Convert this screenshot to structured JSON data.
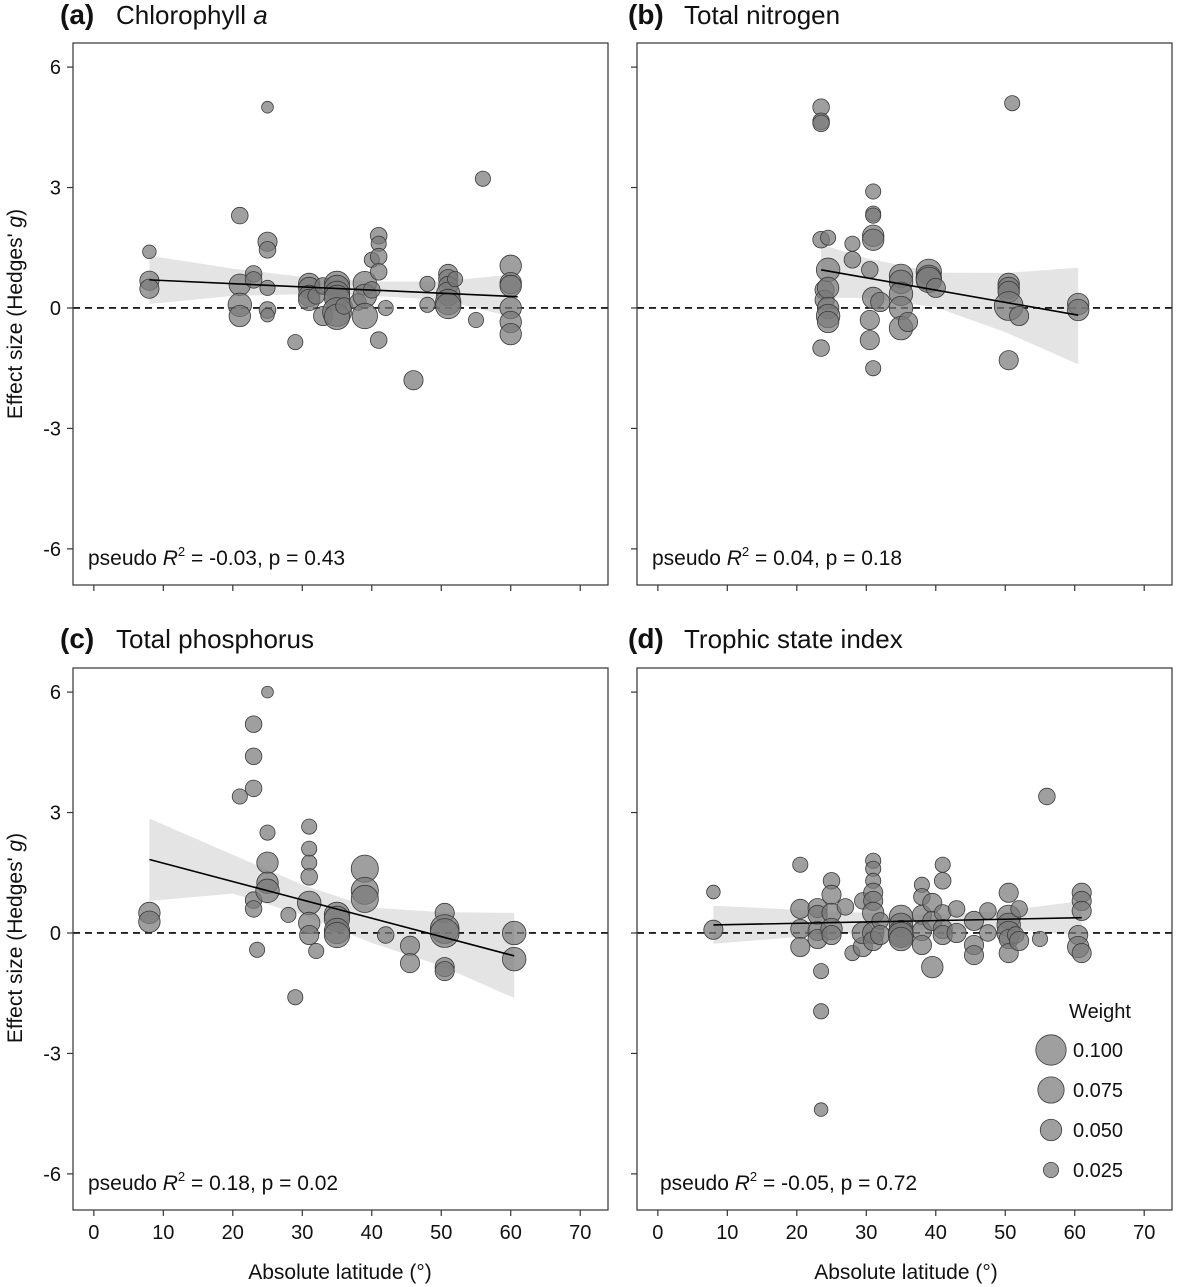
{
  "figure": {
    "y_axis_label": {
      "pre": "Effect size (Hedges' ",
      "italic": "g",
      "post": ")"
    },
    "x_axis_label": "Absolute latitude (°)",
    "x_ticks": [
      0,
      10,
      20,
      30,
      40,
      50,
      60,
      70
    ],
    "y_ticks": [
      6,
      3,
      0,
      -3,
      -6
    ],
    "y_tick_labels": [
      "6",
      "3",
      "0",
      "-3",
      "-6"
    ],
    "legend": {
      "title": "Weight",
      "entries": [
        {
          "label": "0.100",
          "weight": 0.1
        },
        {
          "label": "0.075",
          "weight": 0.075
        },
        {
          "label": "0.050",
          "weight": 0.05
        },
        {
          "label": "0.025",
          "weight": 0.025
        }
      ]
    },
    "colors": {
      "points": "#7a7a7a",
      "point_stroke": "#3a3a3a",
      "ribbon": "#e4e4e4",
      "line": "#000000"
    }
  },
  "chart_data": [
    {
      "type": "scatter",
      "panel_letter": "(a)",
      "title": {
        "text": "Chlorophyll ",
        "italic": "a"
      },
      "xlim": [
        -3,
        74
      ],
      "ylim": [
        -6.9,
        6.6
      ],
      "stat": {
        "pre": "pseudo ",
        "r": "R",
        "sup": "2",
        "post": " = -0.03, p = 0.43"
      },
      "fit": {
        "x": [
          8,
          61
        ],
        "y": [
          0.7,
          0.28
        ]
      },
      "ribbon": {
        "x": [
          8,
          20,
          30,
          40,
          50,
          61
        ],
        "upper": [
          1.3,
          0.98,
          0.78,
          0.66,
          0.66,
          0.85
        ],
        "lower": [
          0.1,
          0.3,
          0.34,
          0.3,
          0.2,
          -0.25
        ]
      },
      "points": [
        [
          8,
          1.4,
          0.02
        ],
        [
          8,
          0.68,
          0.04
        ],
        [
          8,
          0.48,
          0.04
        ],
        [
          21,
          2.3,
          0.03
        ],
        [
          21,
          0.58,
          0.05
        ],
        [
          21,
          0.08,
          0.06
        ],
        [
          21,
          -0.2,
          0.05
        ],
        [
          23,
          0.85,
          0.03
        ],
        [
          23,
          0.7,
          0.03
        ],
        [
          25,
          5.0,
          0.015
        ],
        [
          25,
          1.65,
          0.04
        ],
        [
          25,
          1.45,
          0.03
        ],
        [
          25,
          0.5,
          0.025
        ],
        [
          25,
          -0.05,
          0.03
        ],
        [
          25,
          -0.18,
          0.02
        ],
        [
          29,
          -0.85,
          0.025
        ],
        [
          31,
          0.6,
          0.05
        ],
        [
          31,
          0.5,
          0.05
        ],
        [
          31,
          0.3,
          0.05
        ],
        [
          31,
          0.2,
          0.05
        ],
        [
          32,
          0.3,
          0.03
        ],
        [
          33,
          0.55,
          0.03
        ],
        [
          33,
          -0.2,
          0.04
        ],
        [
          35,
          0.6,
          0.07
        ],
        [
          35,
          0.5,
          0.07
        ],
        [
          35,
          0.35,
          0.07
        ],
        [
          35,
          0.25,
          0.07
        ],
        [
          35,
          -0.1,
          0.09
        ],
        [
          35,
          -0.22,
          0.07
        ],
        [
          36,
          0.05,
          0.03
        ],
        [
          38,
          0.15,
          0.03
        ],
        [
          39,
          0.62,
          0.06
        ],
        [
          39,
          0.3,
          0.06
        ],
        [
          39,
          -0.2,
          0.07
        ],
        [
          40,
          1.2,
          0.025
        ],
        [
          40,
          0.45,
          0.03
        ],
        [
          41,
          1.8,
          0.03
        ],
        [
          41,
          1.6,
          0.025
        ],
        [
          41,
          1.28,
          0.03
        ],
        [
          41,
          0.9,
          0.03
        ],
        [
          41,
          -0.8,
          0.03
        ],
        [
          42,
          0.0,
          0.025
        ],
        [
          46,
          -1.8,
          0.04
        ],
        [
          48,
          0.6,
          0.025
        ],
        [
          48,
          0.08,
          0.025
        ],
        [
          51,
          0.85,
          0.04
        ],
        [
          51,
          0.72,
          0.04
        ],
        [
          51,
          0.55,
          0.04
        ],
        [
          51,
          0.35,
          0.06
        ],
        [
          51,
          0.15,
          0.07
        ],
        [
          51,
          0.05,
          0.07
        ],
        [
          52,
          0.72,
          0.025
        ],
        [
          55,
          -0.3,
          0.025
        ],
        [
          56,
          3.22,
          0.025
        ],
        [
          60,
          1.05,
          0.05
        ],
        [
          60,
          0.62,
          0.05
        ],
        [
          60,
          0.55,
          0.05
        ],
        [
          60,
          0.0,
          0.05
        ],
        [
          60,
          -0.35,
          0.05
        ],
        [
          60,
          -0.65,
          0.05
        ]
      ]
    },
    {
      "type": "scatter",
      "panel_letter": "(b)",
      "title": {
        "text": "Total nitrogen",
        "italic": ""
      },
      "xlim": [
        -3,
        74
      ],
      "ylim": [
        -6.9,
        6.6
      ],
      "stat": {
        "pre": "pseudo ",
        "r": "R",
        "sup": "2",
        "post": " = 0.04, p = 0.18"
      },
      "fit": {
        "x": [
          23.5,
          60.5
        ],
        "y": [
          0.95,
          -0.18
        ]
      },
      "ribbon": {
        "x": [
          23.5,
          30,
          40,
          50,
          60.5
        ],
        "upper": [
          1.58,
          1.24,
          0.88,
          0.87,
          1.0
        ],
        "lower": [
          0.25,
          0.25,
          0.02,
          -0.6,
          -1.4
        ]
      },
      "points": [
        [
          23.5,
          5.0,
          0.03
        ],
        [
          23.5,
          4.65,
          0.03
        ],
        [
          23.5,
          4.6,
          0.03
        ],
        [
          23.5,
          1.7,
          0.03
        ],
        [
          23.5,
          -1.0,
          0.03
        ],
        [
          24,
          0.45,
          0.04
        ],
        [
          24,
          0.2,
          0.04
        ],
        [
          24.5,
          1.75,
          0.025
        ],
        [
          24.5,
          0.95,
          0.06
        ],
        [
          24.5,
          0.5,
          0.05
        ],
        [
          24.5,
          0.0,
          0.05
        ],
        [
          24.5,
          -0.2,
          0.06
        ],
        [
          24.5,
          -0.35,
          0.05
        ],
        [
          28,
          1.6,
          0.025
        ],
        [
          28,
          1.2,
          0.03
        ],
        [
          30.5,
          0.95,
          0.03
        ],
        [
          30.5,
          -0.3,
          0.04
        ],
        [
          30.5,
          -0.8,
          0.04
        ],
        [
          31,
          2.9,
          0.025
        ],
        [
          31,
          2.35,
          0.025
        ],
        [
          31,
          2.3,
          0.025
        ],
        [
          31,
          1.8,
          0.05
        ],
        [
          31,
          1.7,
          0.05
        ],
        [
          31,
          0.25,
          0.05
        ],
        [
          31,
          -1.5,
          0.025
        ],
        [
          32,
          0.15,
          0.04
        ],
        [
          35,
          0.8,
          0.06
        ],
        [
          35,
          0.65,
          0.06
        ],
        [
          35,
          0.35,
          0.06
        ],
        [
          35,
          0.0,
          0.06
        ],
        [
          35,
          -0.5,
          0.06
        ],
        [
          36,
          -0.35,
          0.04
        ],
        [
          39,
          0.9,
          0.07
        ],
        [
          39,
          0.75,
          0.07
        ],
        [
          39,
          0.7,
          0.07
        ],
        [
          40,
          0.5,
          0.04
        ],
        [
          50.5,
          0.6,
          0.05
        ],
        [
          50.5,
          0.5,
          0.05
        ],
        [
          50.5,
          0.4,
          0.05
        ],
        [
          50.5,
          0.05,
          0.09
        ],
        [
          50.5,
          -1.3,
          0.04
        ],
        [
          51,
          5.1,
          0.025
        ],
        [
          52,
          -0.2,
          0.04
        ],
        [
          60.5,
          0.1,
          0.05
        ],
        [
          60.5,
          -0.05,
          0.05
        ]
      ]
    },
    {
      "type": "scatter",
      "panel_letter": "(c)",
      "title": {
        "text": "Total phosphorus",
        "italic": ""
      },
      "xlim": [
        -3,
        74
      ],
      "ylim": [
        -6.9,
        6.6
      ],
      "stat": {
        "pre": "pseudo ",
        "r": "R",
        "sup": "2",
        "post": " = 0.18, p = 0.02"
      },
      "fit": {
        "x": [
          8,
          60.5
        ],
        "y": [
          1.83,
          -0.57
        ]
      },
      "ribbon": {
        "x": [
          8,
          20,
          30,
          40,
          50,
          60.5
        ],
        "upper": [
          2.85,
          1.95,
          1.2,
          0.63,
          0.52,
          0.5
        ],
        "lower": [
          0.8,
          0.98,
          0.45,
          -0.25,
          -0.82,
          -1.62
        ]
      },
      "points": [
        [
          8,
          0.5,
          0.05
        ],
        [
          8,
          0.28,
          0.05
        ],
        [
          21,
          3.4,
          0.025
        ],
        [
          23,
          5.2,
          0.03
        ],
        [
          23,
          4.4,
          0.03
        ],
        [
          23,
          3.6,
          0.03
        ],
        [
          23,
          0.82,
          0.03
        ],
        [
          23,
          0.6,
          0.03
        ],
        [
          23.5,
          -0.42,
          0.025
        ],
        [
          25,
          6.0,
          0.015
        ],
        [
          25,
          2.5,
          0.025
        ],
        [
          25,
          1.75,
          0.05
        ],
        [
          25,
          1.25,
          0.05
        ],
        [
          25,
          1.05,
          0.06
        ],
        [
          28,
          0.45,
          0.025
        ],
        [
          29,
          -1.6,
          0.025
        ],
        [
          31,
          2.65,
          0.025
        ],
        [
          31,
          2.1,
          0.025
        ],
        [
          31,
          1.75,
          0.025
        ],
        [
          31,
          1.4,
          0.03
        ],
        [
          31,
          0.75,
          0.06
        ],
        [
          31,
          0.25,
          0.05
        ],
        [
          31,
          -0.05,
          0.04
        ],
        [
          32,
          -0.45,
          0.025
        ],
        [
          35,
          0.45,
          0.07
        ],
        [
          35,
          0.35,
          0.07
        ],
        [
          35,
          0.05,
          0.07
        ],
        [
          35,
          -0.05,
          0.07
        ],
        [
          39,
          1.6,
          0.08
        ],
        [
          39,
          1.05,
          0.08
        ],
        [
          39,
          0.85,
          0.08
        ],
        [
          42,
          -0.05,
          0.03
        ],
        [
          45.5,
          -0.32,
          0.04
        ],
        [
          45.5,
          -0.75,
          0.04
        ],
        [
          50.5,
          0.5,
          0.04
        ],
        [
          50.5,
          0.1,
          0.09
        ],
        [
          50.5,
          0.0,
          0.09
        ],
        [
          50.5,
          -0.85,
          0.04
        ],
        [
          50.5,
          -0.95,
          0.04
        ],
        [
          60.5,
          0.0,
          0.06
        ],
        [
          60.5,
          -0.65,
          0.06
        ]
      ]
    },
    {
      "type": "scatter",
      "panel_letter": "(d)",
      "title": {
        "text": "Trophic state index",
        "italic": ""
      },
      "xlim": [
        -3,
        74
      ],
      "ylim": [
        -6.9,
        6.6
      ],
      "stat": {
        "pre": "pseudo ",
        "r": "R",
        "sup": "2",
        "post": " = -0.05, p = 0.72"
      },
      "fit": {
        "x": [
          8,
          61
        ],
        "y": [
          0.2,
          0.38
        ]
      },
      "ribbon": {
        "x": [
          8,
          20,
          30,
          40,
          50,
          61
        ],
        "upper": [
          0.68,
          0.58,
          0.5,
          0.45,
          0.55,
          0.8
        ],
        "lower": [
          -0.27,
          -0.1,
          0.02,
          0.1,
          0.1,
          -0.05
        ]
      },
      "points": [
        [
          8,
          1.02,
          0.02
        ],
        [
          8,
          0.08,
          0.04
        ],
        [
          20.5,
          1.7,
          0.025
        ],
        [
          20.5,
          0.6,
          0.04
        ],
        [
          20.5,
          0.1,
          0.04
        ],
        [
          20.5,
          -0.35,
          0.04
        ],
        [
          23,
          0.62,
          0.04
        ],
        [
          23,
          0.45,
          0.04
        ],
        [
          23,
          0.05,
          0.04
        ],
        [
          23,
          -0.15,
          0.04
        ],
        [
          23.5,
          -0.95,
          0.025
        ],
        [
          23.5,
          -1.95,
          0.025
        ],
        [
          23.5,
          -4.4,
          0.02
        ],
        [
          25,
          1.3,
          0.03
        ],
        [
          25,
          0.95,
          0.04
        ],
        [
          25,
          0.5,
          0.04
        ],
        [
          25,
          0.1,
          0.05
        ],
        [
          25,
          -0.05,
          0.04
        ],
        [
          27,
          0.65,
          0.03
        ],
        [
          28,
          -0.5,
          0.025
        ],
        [
          29.5,
          0.8,
          0.03
        ],
        [
          29.5,
          -0.35,
          0.04
        ],
        [
          29.5,
          0.0,
          0.05
        ],
        [
          31,
          1.8,
          0.025
        ],
        [
          31,
          1.6,
          0.025
        ],
        [
          31,
          1.3,
          0.025
        ],
        [
          31,
          1.0,
          0.04
        ],
        [
          31,
          0.8,
          0.04
        ],
        [
          31,
          0.5,
          0.05
        ],
        [
          31,
          0.0,
          0.05
        ],
        [
          31,
          -0.2,
          0.04
        ],
        [
          32,
          0.3,
          0.03
        ],
        [
          32,
          -0.05,
          0.04
        ],
        [
          35,
          0.4,
          0.06
        ],
        [
          35,
          0.2,
          0.06
        ],
        [
          35,
          0.0,
          0.07
        ],
        [
          35,
          -0.05,
          0.07
        ],
        [
          35,
          -0.15,
          0.06
        ],
        [
          38,
          1.2,
          0.025
        ],
        [
          38,
          0.9,
          0.03
        ],
        [
          38,
          0.45,
          0.04
        ],
        [
          38,
          0.05,
          0.04
        ],
        [
          38,
          -0.3,
          0.04
        ],
        [
          39.5,
          0.75,
          0.04
        ],
        [
          39.5,
          0.3,
          0.04
        ],
        [
          39.5,
          -0.85,
          0.05
        ],
        [
          41,
          1.7,
          0.025
        ],
        [
          41,
          1.3,
          0.03
        ],
        [
          41,
          0.5,
          0.03
        ],
        [
          41,
          0.1,
          0.04
        ],
        [
          41,
          -0.05,
          0.04
        ],
        [
          43,
          0.6,
          0.03
        ],
        [
          43,
          0.0,
          0.04
        ],
        [
          45.5,
          0.3,
          0.04
        ],
        [
          45.5,
          -0.3,
          0.04
        ],
        [
          45.5,
          -0.55,
          0.04
        ],
        [
          47.5,
          0.55,
          0.03
        ],
        [
          47.5,
          0.0,
          0.03
        ],
        [
          50.5,
          1.0,
          0.04
        ],
        [
          50.5,
          0.4,
          0.06
        ],
        [
          50.5,
          0.2,
          0.06
        ],
        [
          50.5,
          0.0,
          0.06
        ],
        [
          50.5,
          -0.15,
          0.04
        ],
        [
          50.5,
          -0.5,
          0.04
        ],
        [
          51.5,
          -0.05,
          0.03
        ],
        [
          52,
          0.6,
          0.03
        ],
        [
          52,
          -0.2,
          0.04
        ],
        [
          55,
          -0.15,
          0.025
        ],
        [
          56,
          3.4,
          0.03
        ],
        [
          60.5,
          -0.05,
          0.04
        ],
        [
          60.5,
          -0.35,
          0.05
        ],
        [
          61,
          1.0,
          0.04
        ],
        [
          61,
          0.8,
          0.04
        ],
        [
          61,
          0.55,
          0.04
        ],
        [
          61,
          -0.5,
          0.04
        ]
      ]
    }
  ]
}
